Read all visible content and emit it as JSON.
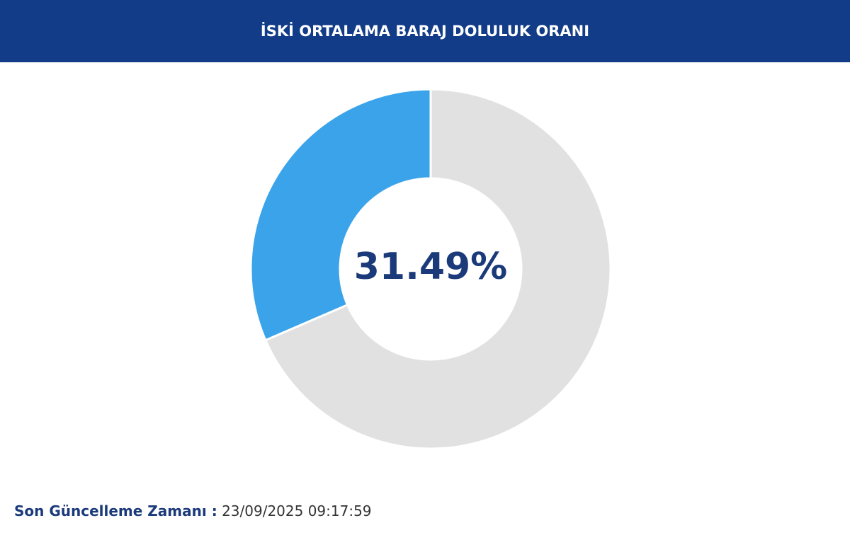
{
  "chart_data": {
    "type": "donut",
    "title": "İSKİ ORTALAMA BARAJ DOLULUK ORANI",
    "categories": [
      null,
      null
    ],
    "values": [
      31.49,
      68.51
    ],
    "value_labels": [
      "31.49%",
      null
    ],
    "colors": [
      "#3aa3ea",
      "#e1e1e1"
    ]
  },
  "footer": {
    "label": "Son Güncelleme Zamanı :",
    "timestamp": "23/09/2025 09:17:59"
  }
}
